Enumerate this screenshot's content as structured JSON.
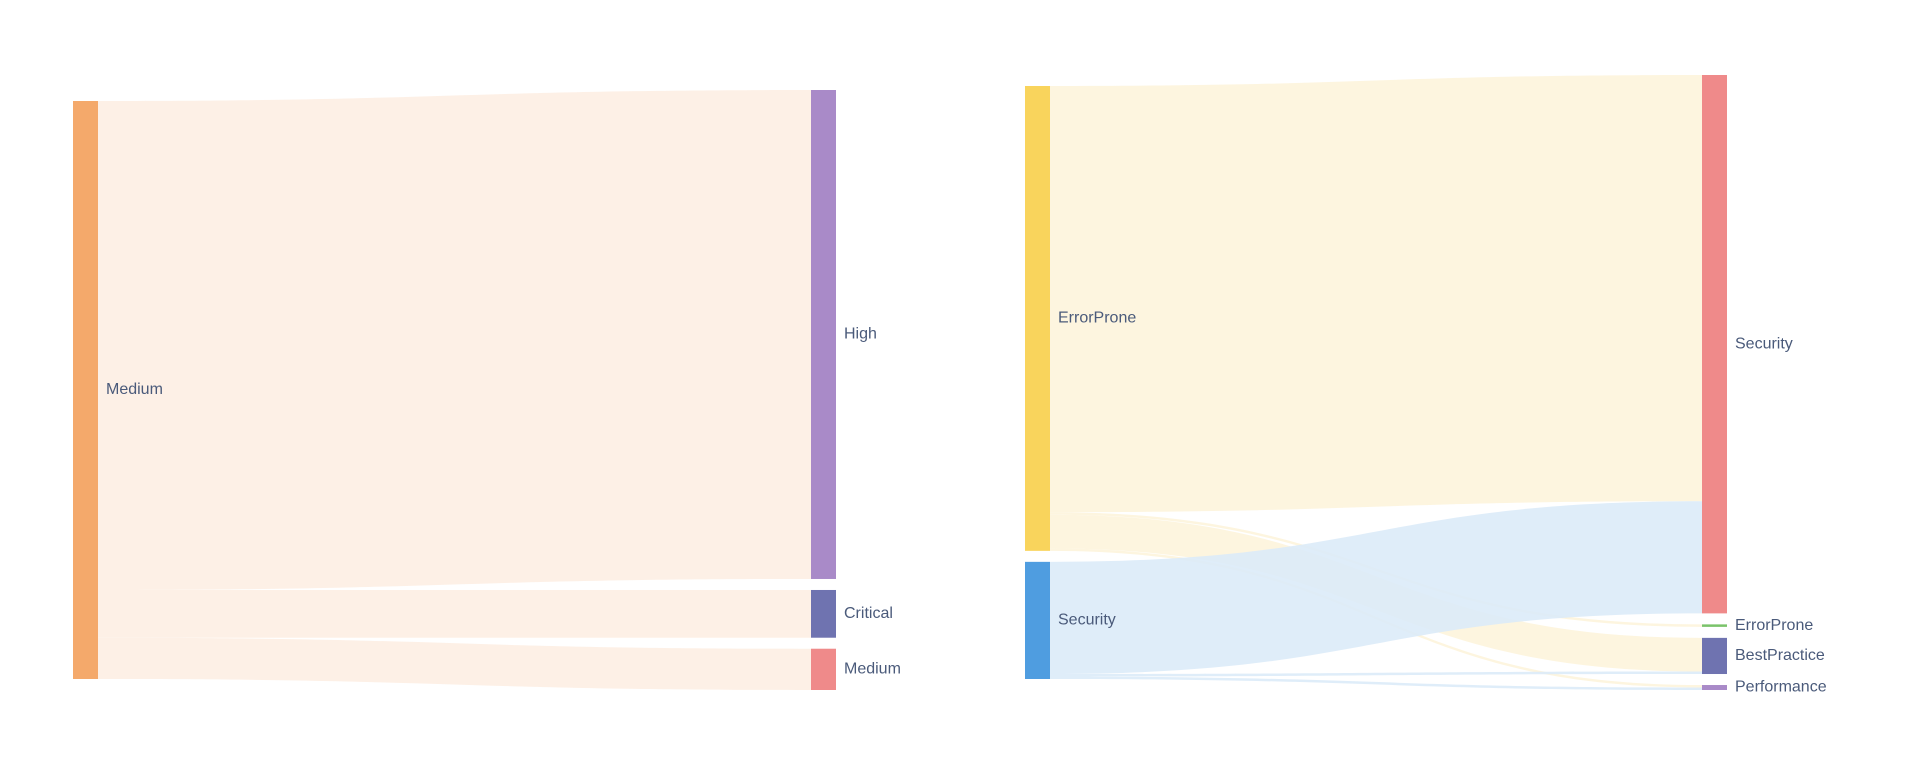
{
  "chart_data": [
    {
      "type": "sankey",
      "nodes": [
        {
          "label": "Medium",
          "color": "#f4a96b"
        },
        {
          "label": "High",
          "color": "#a98ac8"
        },
        {
          "label": "Critical",
          "color": "#6f73b0"
        },
        {
          "label": "Medium",
          "color": "#ef8a8a"
        }
      ],
      "links": [
        {
          "source": 0,
          "target": 1,
          "value": 379,
          "color": "#fdeee3"
        },
        {
          "source": 0,
          "target": 2,
          "value": 37,
          "color": "#fdeee3"
        },
        {
          "source": 0,
          "target": 3,
          "value": 32,
          "color": "#fdeee3"
        }
      ]
    },
    {
      "type": "sankey",
      "nodes": [
        {
          "label": "ErrorProne",
          "color": "#f9d45c"
        },
        {
          "label": "Security",
          "color": "#4f9de0"
        },
        {
          "label": "Security",
          "color": "#ef8a8a"
        },
        {
          "label": "ErrorProne",
          "color": "#7ac36a"
        },
        {
          "label": "BestPractice",
          "color": "#6f73b0"
        },
        {
          "label": "Performance",
          "color": "#a98ac8"
        }
      ],
      "links": [
        {
          "source": 0,
          "target": 2,
          "value": 342,
          "color": "#fdf4dc"
        },
        {
          "source": 0,
          "target": 3,
          "value": 2,
          "color": "#fdf4dc"
        },
        {
          "source": 0,
          "target": 4,
          "value": 27,
          "color": "#fdf4dc"
        },
        {
          "source": 0,
          "target": 5,
          "value": 2,
          "color": "#fdf4dc"
        },
        {
          "source": 1,
          "target": 2,
          "value": 90,
          "color": "#dcebf8"
        },
        {
          "source": 1,
          "target": 4,
          "value": 2,
          "color": "#dcebf8"
        },
        {
          "source": 1,
          "target": 5,
          "value": 2,
          "color": "#dcebf8"
        }
      ]
    }
  ]
}
